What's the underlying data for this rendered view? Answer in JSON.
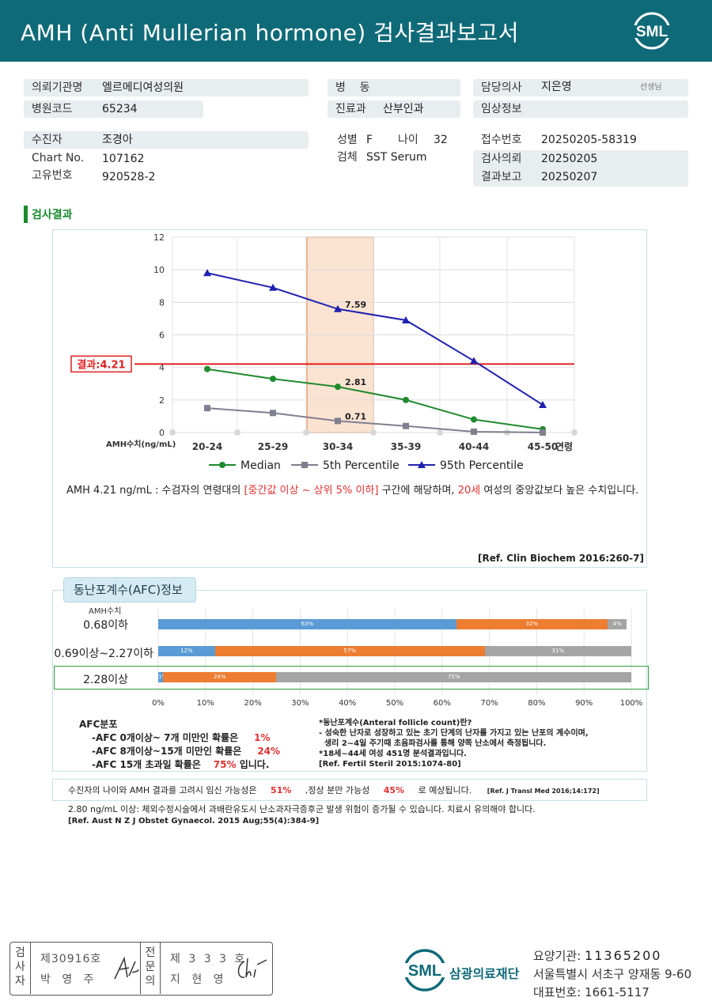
{
  "header": {
    "title": "AMH (Anti Mullerian hormone) 검사결과보고서",
    "logo_text": "SML"
  },
  "info": {
    "institution_label": "의뢰기관명",
    "institution_value": "엘르메디여성의원",
    "hospital_code_label": "병원코드",
    "hospital_code_value": "65234",
    "ward_label": "병    동",
    "ward_value": "",
    "dept_label": "진료과",
    "dept_value": "산부인과",
    "doctor_label": "담당의사",
    "doctor_value": "지은영",
    "doctor_suffix": "선생님",
    "clinical_label": "임상정보",
    "clinical_value": "",
    "patient_label": "수진자",
    "patient_value": "조경아",
    "chart_label": "Chart No.",
    "chart_value": "107162",
    "uid_label": "고유번호",
    "uid_value": "920528-2",
    "sex_label": "성별",
    "sex_value": "F",
    "age_label": "나이",
    "age_value": "32",
    "specimen_label": "검체",
    "specimen_value": "SST Serum",
    "receipt_label": "접수번호",
    "receipt_value": "20250205-58319",
    "requested_label": "검사의뢰",
    "requested_value": "20250205",
    "reported_label": "결과보고",
    "reported_value": "20250207"
  },
  "section_title": "검사결과",
  "chart_data": {
    "type": "line",
    "categories": [
      "20-24",
      "25-29",
      "30-34",
      "35-39",
      "40-44",
      "45-50"
    ],
    "series": [
      {
        "name": "Median",
        "values": [
          3.9,
          3.3,
          2.81,
          2.0,
          0.8,
          0.2
        ],
        "color": "#1f8a2e",
        "marker": "circle"
      },
      {
        "name": "5th Percentile",
        "values": [
          1.5,
          1.2,
          0.71,
          0.4,
          0.05,
          0.0
        ],
        "color": "#7f7f8f",
        "marker": "square"
      },
      {
        "name": "95th Percentile",
        "values": [
          9.8,
          8.9,
          7.59,
          6.9,
          4.4,
          1.7
        ],
        "color": "#2020b0",
        "marker": "triangle"
      }
    ],
    "highlight_category": "30-34",
    "result_line": {
      "value": 4.21,
      "label": "결과:4.21",
      "color": "#e02020"
    },
    "data_labels": [
      {
        "series": "95th Percentile",
        "category": "30-34",
        "text": "7.59"
      },
      {
        "series": "Median",
        "category": "30-34",
        "text": "2.81"
      },
      {
        "series": "5th Percentile",
        "category": "30-34",
        "text": "0.71"
      }
    ],
    "yticks": [
      "0",
      "2",
      "4",
      "6",
      "8",
      "10",
      "12"
    ],
    "ylim": [
      0,
      12
    ],
    "ylabel": "AMH수치(ng/mL)",
    "xlabel": "연령",
    "grid": true,
    "legend_position": "bottom"
  },
  "comment": {
    "part1": "AMH  4.21 ng/mL : 수검자의 연령대의 ",
    "part2": "[중간값 이상 ~ 상위 5% 이하]",
    "part3": " 구간에 해당하며, ",
    "part4": "20세",
    "part5": " 여성의 중앙값보다 높은 수치입니다."
  },
  "ref1": "[Ref. Clin Biochem 2016:260-7]",
  "afc": {
    "tab_title": "동난포계수(AFC)정보",
    "amh_axis_label": "AMH수치",
    "rows": [
      {
        "label": "0.68이하",
        "segments": [
          {
            "pct": 63,
            "text": "63%"
          },
          {
            "pct": 32,
            "text": "32%"
          },
          {
            "pct": 4,
            "text": "4%"
          }
        ]
      },
      {
        "label": "0.69이상~2.27이하",
        "segments": [
          {
            "pct": 12,
            "text": "12%"
          },
          {
            "pct": 57,
            "text": "57%"
          },
          {
            "pct": 31,
            "text": "31%"
          }
        ]
      },
      {
        "label": "2.28이상",
        "segments": [
          {
            "pct": 1,
            "text": "1%"
          },
          {
            "pct": 24,
            "text": "24%"
          },
          {
            "pct": 75,
            "text": "75%"
          }
        ]
      }
    ],
    "segment_colors": [
      "#5a9bd5",
      "#ed7d31",
      "#a5a5a5"
    ],
    "x_ticks": [
      "0%",
      "10%",
      "20%",
      "30%",
      "40%",
      "50%",
      "60%",
      "70%",
      "80%",
      "90%",
      "100%"
    ],
    "dist_title": "AFC분포",
    "dist_lines": [
      {
        "text": "-AFC  0개이상~ 7개 미만인 확률은",
        "pct": "1%",
        "suffix": ""
      },
      {
        "text": "-AFC  8개이상~15개 미만인 확률은",
        "pct": "24%",
        "suffix": ""
      },
      {
        "text": "-AFC  15개 초과일 확률은",
        "pct": "75%",
        "suffix": "입니다."
      }
    ],
    "def_lines": [
      "*동난포계수(Anteral  follicle  count)란?",
      "- 성숙한 난자로 성장하고 있는 초기 단계의 난자를 가지고 있는 난포의 계수이며,",
      "  생리 2~4일 주기때 초음파검사를 통해 양쪽 난소에서 측정됩니다.",
      "*18세~44세 여성 451명 분석결과입니다.",
      "[Ref. Fertil Steril 2015:1074-80]"
    ]
  },
  "pregnancy": {
    "part1": "수진자의 나이와 AMH 결과를 고려시 임신 가능성은",
    "pct1": "51%",
    "part2": ",정상 분만 가능성",
    "pct2": "45%",
    "part3": "로 예상됩니다.",
    "ref": "[Ref. J Transl Med 2016;14:172]"
  },
  "warning": {
    "line1": "2.80  ng/mL  이상: 체외수정시술에서 과배란유도시 난소과자극증후군 발생 위험이 증가될 수 있습니다. 치료시 유의해야 합니다.",
    "ref": "[Ref. Aust N Z J Obstet Gynaecol. 2015 Aug;55(4):384-9]"
  },
  "signature": {
    "label1": "검사자",
    "no1": "제30916호",
    "name1": "박 영 주",
    "label2": "전문의",
    "no2": "제 3 3 3 호",
    "name2": "지 현 영"
  },
  "footer": {
    "logo_text": "SML",
    "org_name": "삼광의료재단",
    "code_label": "요양기관: ",
    "code_value": "11365200",
    "address": "서울특별시 서초구 양재동 9-60",
    "phone_label": "대표번호: ",
    "phone_value": "1661-5117"
  }
}
